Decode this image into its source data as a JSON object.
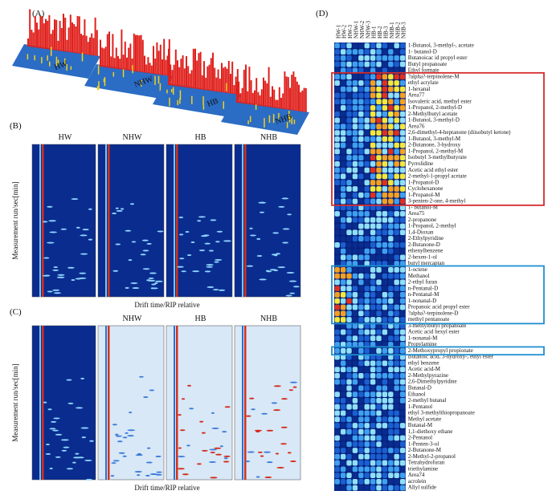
{
  "panels": {
    "A": {
      "label": "(A)",
      "groups": [
        "HW",
        "NHW",
        "HB",
        "NHB"
      ]
    },
    "B": {
      "label": "(B)",
      "titles": [
        "HW",
        "NHW",
        "HB",
        "NHB"
      ],
      "y_axis_label": "Measurement run/sec[min]",
      "x_axis_label": "Drift time/RIP relative"
    },
    "C": {
      "label": "(C)",
      "titles": [
        "NHW",
        "HB",
        "NHB"
      ],
      "y_axis_label": "Measurement run/sec[min]",
      "x_axis_label": "Drift time/RIP relative"
    },
    "D": {
      "label": "(D)",
      "columns": [
        "HW-1",
        "HW-2",
        "HW-3",
        "NHW-1",
        "NHW-2",
        "NHW-3",
        "HB-1",
        "HB-2",
        "HB-3",
        "NHB-1",
        "NHB-2",
        "NHB-3"
      ],
      "rows": [
        "1-Butanol, 3-methyl-, acetate",
        "1- butanol-D",
        "Butanoicac id propyl ester",
        "Butyl propanoate",
        "Ethyl formate",
        "?alpha?-terpinolene-M",
        "ethyl acrylate",
        "1-hexanal",
        "Area77",
        "Isovaleric acid, methyl ester",
        "1-Propanol, 2-methyl-D",
        "2-Methylbutyl acetate",
        "1-Butanol, 3-methyl-D",
        "Area76",
        "2,6-dimethyl-4-heptanone (diisobutyl ketone)",
        "1-Butanol, 3-methyl-M",
        "2-Butanone, 3-hydroxy",
        "1-Propanol, 2-methyl-M",
        "Isobutyl 3-methylbutyrate",
        "Pyrrolidine",
        "Acetic acid ethyl ester",
        "2-methyl-1-propyl acetate",
        "1-Propanol-D",
        "Cyclohexanone",
        "1-Propanol-M",
        "3-penten-2-one, 4-methyl",
        "1- butanol-M",
        "Area75",
        "2-propanone",
        "1-Propanol, 2-methyl",
        "1,4-Dioxan",
        "2-Ethylpyridine",
        "2-Butanone-D",
        "ethenylbenzene",
        "2-hexen-1-ol",
        "butyl mercaptan",
        "1-octene",
        "Methanol",
        "2-ethyl furan",
        "n-Pentanal-D",
        "n-Pentanal-M",
        "1-nonanal-D",
        "Propanoic acid propyl ester",
        "?alpha?-terpinolene-D",
        "methyl pentanoate",
        "3-methylbutyl propanoate",
        "Acetic acid hexyl ester",
        "1-nonanal-M",
        "Propylamine",
        "2-Methoxypropyl propionate",
        "Butanoic acid, 3-hydroxy-, ethyl ester",
        "ethyl benzene",
        "Acetic acid-M",
        "2-Methylpyrazine",
        "2,6-Dimethylpyridine",
        "Butanal-D",
        "Ethanol",
        "2-methyl butanal",
        "1-Pentanol",
        "ethyl 3-methylthiopropanoate",
        "Methyl acetate",
        "Butanal-M",
        "1,1-diethoxy ethane",
        "2-Pentanol",
        "1-Penten-3-ol",
        "2-Butanone-M",
        "2-Methyl-2-propanol",
        "Tetrahydrofuran",
        "triethylamine",
        "Area74",
        "acrolein",
        "Allyl sulfide"
      ]
    }
  }
}
